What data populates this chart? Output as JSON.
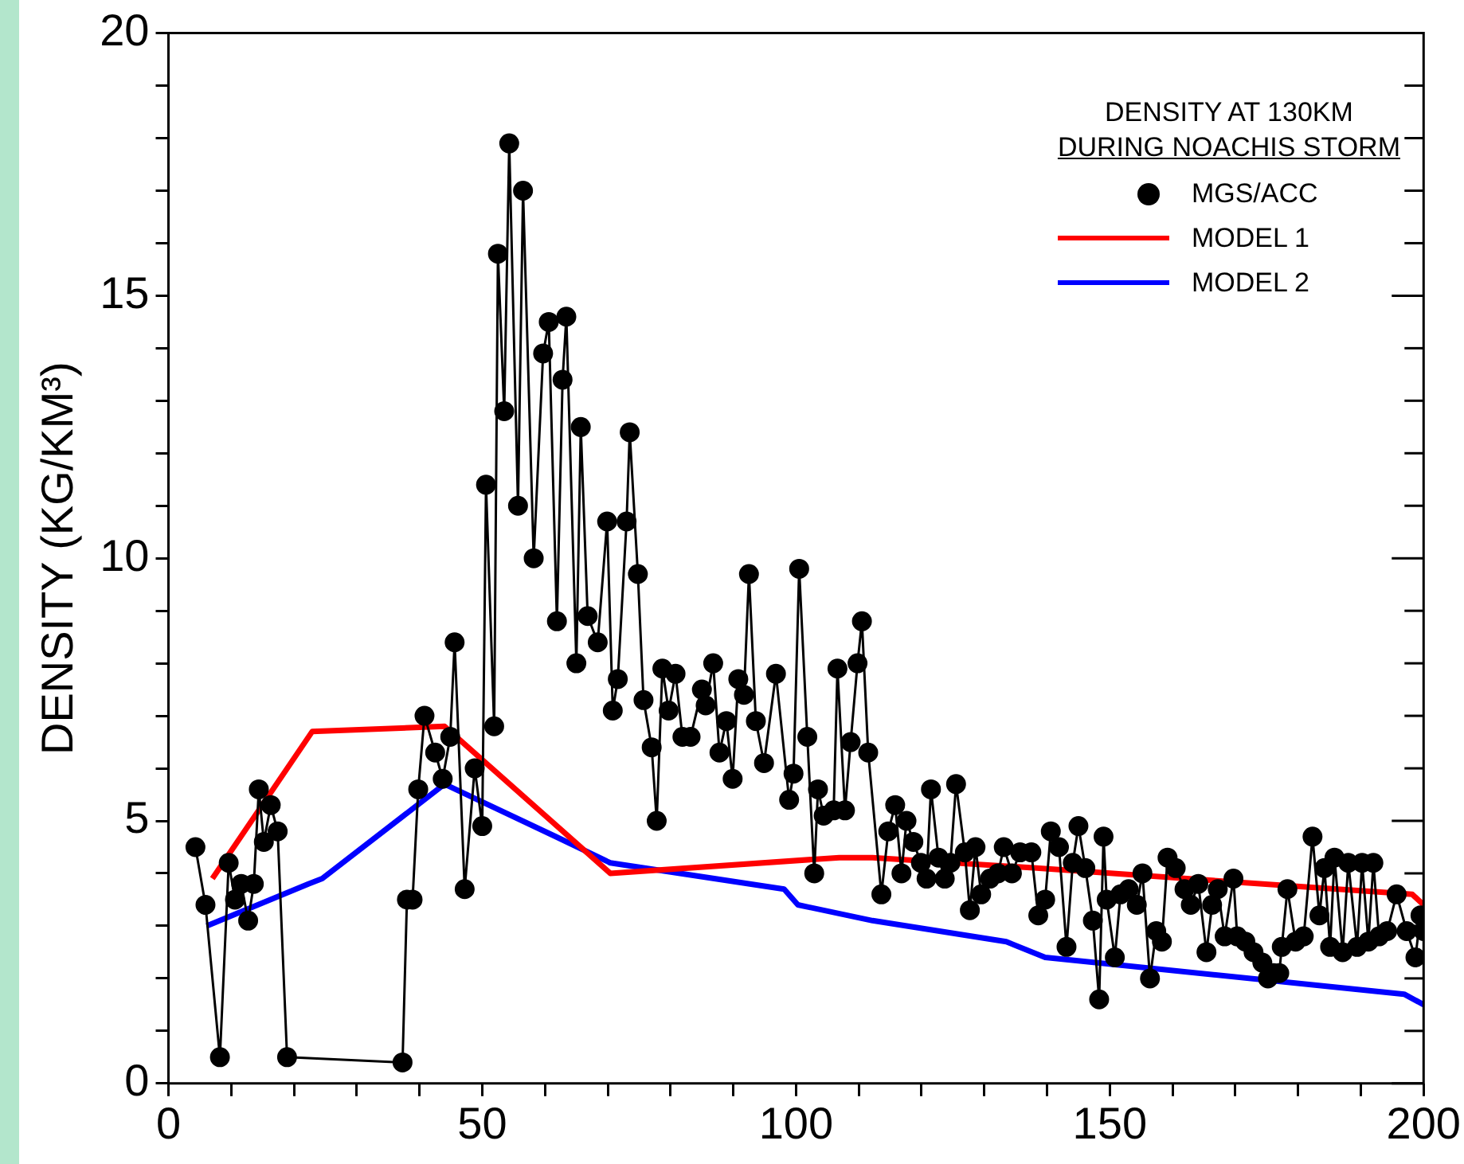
{
  "chart_data": {
    "type": "line",
    "ylabel": "DENSITY (KG/KM³)",
    "annotations": [
      "DENSITY AT 130KM",
      "DURING NOACHIS STORM"
    ],
    "legend": "top right",
    "grid": false,
    "xlim": [
      0,
      200
    ],
    "ylim": [
      0,
      20
    ],
    "xticks": [
      0,
      {
        "value": 10,
        "label": null
      },
      {
        "value": 20,
        "label": null
      },
      {
        "value": 30,
        "label": null
      },
      {
        "value": 40,
        "label": null
      },
      50,
      {
        "value": 60,
        "label": null
      },
      {
        "value": 70,
        "label": null
      },
      {
        "value": 80,
        "label": null
      },
      {
        "value": 90,
        "label": null
      },
      100,
      {
        "value": 110,
        "label": null
      },
      {
        "value": 120,
        "label": null
      },
      {
        "value": 130,
        "label": null
      },
      {
        "value": 140,
        "label": null
      },
      150,
      {
        "value": 160,
        "label": null
      },
      {
        "value": 170,
        "label": null
      },
      {
        "value": 180,
        "label": null
      },
      {
        "value": 190,
        "label": null
      },
      200
    ],
    "yticks": [
      0,
      {
        "value": 1,
        "label": null
      },
      {
        "value": 2,
        "label": null
      },
      {
        "value": 3,
        "label": null
      },
      {
        "value": 4,
        "label": null
      },
      5,
      {
        "value": 6,
        "label": null
      },
      {
        "value": 7,
        "label": null
      },
      {
        "value": 8,
        "label": null
      },
      {
        "value": 9,
        "label": null
      },
      10,
      {
        "value": 11,
        "label": null
      },
      {
        "value": 12,
        "label": null
      },
      {
        "value": 13,
        "label": null
      },
      {
        "value": 14,
        "label": null
      },
      15,
      {
        "value": 16,
        "label": null
      },
      {
        "value": 17,
        "label": null
      },
      {
        "value": 18,
        "label": null
      },
      {
        "value": 19,
        "label": null
      },
      20
    ],
    "series": [
      {
        "name": "MGS/ACC",
        "color": "#000000",
        "marker": "circle",
        "x": [
          4.3,
          5.9,
          8.2,
          9.6,
          10.6,
          11.6,
          12.7,
          13.6,
          14.4,
          15.2,
          16.3,
          17.4,
          18.9,
          37.3,
          38.0,
          38.9,
          39.8,
          40.8,
          42.5,
          43.7,
          44.9,
          45.6,
          47.2,
          48.8,
          50.0,
          50.6,
          51.9,
          52.5,
          53.5,
          54.3,
          55.7,
          56.5,
          58.2,
          59.7,
          60.6,
          61.9,
          62.8,
          63.4,
          65.0,
          65.7,
          66.8,
          68.4,
          69.9,
          70.8,
          71.6,
          73.0,
          73.5,
          74.8,
          75.7,
          77.0,
          77.8,
          78.7,
          79.7,
          80.8,
          81.9,
          83.2,
          85.0,
          85.6,
          86.8,
          87.8,
          88.9,
          89.9,
          90.8,
          91.7,
          92.5,
          93.6,
          94.9,
          96.8,
          98.9,
          99.6,
          100.5,
          101.8,
          102.9,
          103.5,
          104.4,
          106.0,
          106.6,
          107.8,
          108.7,
          109.8,
          110.5,
          111.5,
          113.6,
          114.7,
          115.8,
          116.8,
          117.6,
          118.7,
          119.9,
          120.8,
          121.5,
          122.7,
          123.7,
          124.6,
          125.5,
          126.9,
          127.7,
          128.6,
          129.5,
          130.9,
          132.2,
          133.1,
          134.4,
          135.7,
          137.5,
          138.6,
          139.7,
          140.6,
          141.9,
          143.1,
          144.1,
          145.0,
          146.1,
          147.3,
          148.3,
          149.0,
          149.5,
          150.8,
          151.7,
          153.0,
          154.3,
          155.2,
          156.4,
          157.4,
          158.3,
          159.2,
          160.5,
          161.9,
          162.9,
          164.1,
          165.4,
          166.3,
          167.2,
          168.3,
          169.7,
          170.3,
          171.6,
          172.9,
          174.3,
          175.2,
          176.1,
          177.0,
          177.4,
          178.3,
          179.6,
          180.9,
          182.3,
          183.4,
          184.2,
          185.1,
          185.8,
          187.1,
          188.0,
          189.4,
          190.2,
          191.2,
          192.0,
          192.9,
          194.2,
          195.7,
          197.3,
          198.7,
          199.5,
          200
        ],
        "values": [
          4.5,
          3.4,
          0.5,
          4.2,
          3.5,
          3.8,
          3.1,
          3.8,
          5.6,
          4.6,
          5.3,
          4.8,
          0.5,
          0.4,
          3.5,
          3.5,
          5.6,
          7.0,
          6.3,
          5.8,
          6.6,
          8.4,
          3.7,
          6.0,
          4.9,
          11.4,
          6.8,
          15.8,
          12.8,
          17.9,
          11.0,
          17.0,
          10.0,
          13.9,
          14.5,
          8.8,
          13.4,
          14.6,
          8.0,
          12.5,
          8.9,
          8.4,
          10.7,
          7.1,
          7.7,
          10.7,
          12.4,
          9.7,
          7.3,
          6.4,
          5.0,
          7.9,
          7.1,
          7.8,
          6.6,
          6.6,
          7.5,
          7.2,
          8.0,
          6.3,
          6.9,
          5.8,
          7.7,
          7.4,
          9.7,
          6.9,
          6.1,
          7.8,
          5.4,
          5.9,
          9.8,
          6.6,
          4.0,
          5.6,
          5.1,
          5.2,
          7.9,
          5.2,
          6.5,
          8.0,
          8.8,
          6.3,
          3.6,
          4.8,
          5.3,
          4.0,
          5.0,
          4.6,
          4.2,
          3.9,
          5.6,
          4.3,
          3.9,
          4.2,
          5.7,
          4.4,
          3.3,
          4.5,
          3.6,
          3.9,
          4.0,
          4.5,
          4.0,
          4.4,
          4.4,
          3.2,
          3.5,
          4.8,
          4.5,
          2.6,
          4.2,
          4.9,
          4.1,
          3.1,
          1.6,
          4.7,
          3.5,
          2.4,
          3.6,
          3.7,
          3.4,
          4.0,
          2.0,
          2.9,
          2.7,
          4.3,
          4.1,
          3.7,
          3.4,
          3.8,
          2.5,
          3.4,
          3.7,
          2.8,
          3.9,
          2.8,
          2.7,
          2.5,
          2.3,
          2.0,
          2.1,
          2.1,
          2.6,
          3.7,
          2.7,
          2.8,
          4.7,
          3.2,
          4.1,
          2.6,
          4.3,
          2.5,
          4.2,
          2.6,
          4.2,
          2.7,
          4.2,
          2.8,
          2.9,
          3.6,
          2.9,
          2.4,
          3.2,
          2.9
        ]
      },
      {
        "name": "MODEL 1",
        "color": "#ff0000",
        "marker": "none",
        "x": [
          7.0,
          22.9,
          44.0,
          70.4,
          106.9,
          112.2,
          138.3,
          198.2,
          200
        ],
        "values": [
          3.9,
          6.7,
          6.8,
          4.0,
          4.3,
          4.3,
          4.1,
          3.6,
          3.4
        ]
      },
      {
        "name": "MODEL 2",
        "color": "#0000ff",
        "marker": "none",
        "x": [
          6.1,
          22.3,
          24.5,
          44.0,
          61.7,
          70.4,
          98.1,
          100.3,
          112.2,
          133.5,
          139.7,
          196.9,
          200
        ],
        "values": [
          3.0,
          3.8,
          3.9,
          5.7,
          4.7,
          4.2,
          3.7,
          3.4,
          3.1,
          2.7,
          2.4,
          1.7,
          1.5
        ]
      }
    ]
  }
}
